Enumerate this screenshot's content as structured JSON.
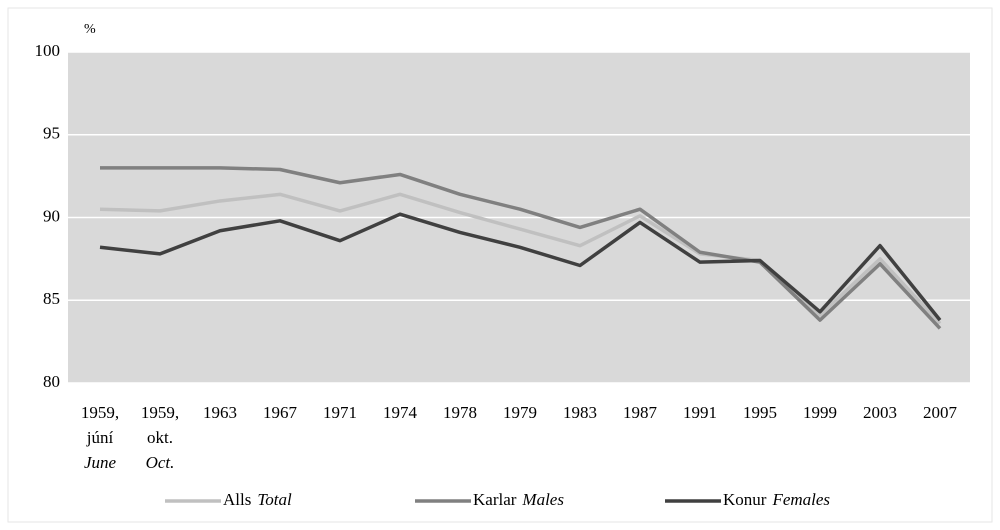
{
  "chart_data": {
    "type": "line",
    "y_unit": "%",
    "categories": [
      [
        "1959,",
        "júní",
        "June"
      ],
      [
        "1959,",
        "okt.",
        "Oct."
      ],
      [
        "1963"
      ],
      [
        "1967"
      ],
      [
        "1971"
      ],
      [
        "1974"
      ],
      [
        "1978"
      ],
      [
        "1979"
      ],
      [
        "1983"
      ],
      [
        "1987"
      ],
      [
        "1991"
      ],
      [
        "1995"
      ],
      [
        "1999"
      ],
      [
        "2003"
      ],
      [
        "2007"
      ]
    ],
    "series": [
      {
        "name": "Alls",
        "name_en": "Total",
        "color": "#c0c0c0",
        "values": [
          90.5,
          90.4,
          91.0,
          91.4,
          90.4,
          91.4,
          90.3,
          89.3,
          88.3,
          90.1,
          87.8,
          87.4,
          84.1,
          87.5,
          83.6
        ]
      },
      {
        "name": "Karlar",
        "name_en": "Males",
        "color": "#808080",
        "values": [
          93.0,
          93.0,
          93.0,
          92.9,
          92.1,
          92.6,
          91.4,
          90.5,
          89.4,
          90.5,
          87.9,
          87.3,
          83.8,
          87.2,
          83.3
        ]
      },
      {
        "name": "Konur",
        "name_en": "Females",
        "color": "#404040",
        "values": [
          88.2,
          87.8,
          89.2,
          89.8,
          88.6,
          90.2,
          89.1,
          88.2,
          87.1,
          89.7,
          87.3,
          87.4,
          84.3,
          88.3,
          83.8
        ]
      }
    ],
    "ylim": [
      80,
      100
    ],
    "yticks": [
      80,
      85,
      90,
      95,
      100
    ],
    "grid": true,
    "legend": "bottom"
  }
}
